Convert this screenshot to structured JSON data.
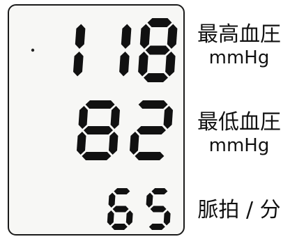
{
  "display": {
    "systolic": "118",
    "diastolic": "82",
    "pulse": "65"
  },
  "labels": {
    "systolic": {
      "name": "最高血圧",
      "unit": "mmHg"
    },
    "diastolic": {
      "name": "最低血圧",
      "unit": "mmHg"
    },
    "pulse": {
      "name": "脈拍 / 分"
    }
  },
  "colors": {
    "segment": "#111111",
    "background": "#f7f7f5"
  }
}
